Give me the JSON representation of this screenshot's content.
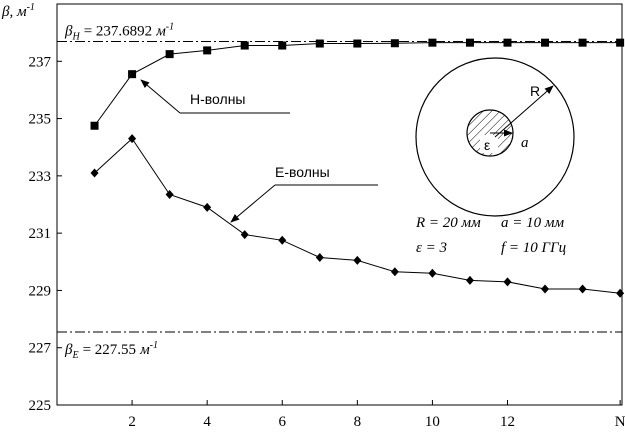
{
  "chart_data": {
    "type": "line",
    "ylabel": {
      "symbol": "β",
      "text": ", м",
      "exponent": "-1"
    },
    "xlim": [
      0,
      15.05
    ],
    "ylim": [
      225,
      239
    ],
    "xticks": [
      2,
      4,
      6,
      8,
      10,
      12,
      {
        "value": 15,
        "label": "N"
      }
    ],
    "yticks": [
      225,
      227,
      229,
      231,
      233,
      235,
      237
    ],
    "x": [
      1,
      2,
      3,
      4,
      5,
      6,
      7,
      8,
      9,
      10,
      11,
      12,
      13,
      14,
      15
    ],
    "series": [
      {
        "name": "H-волны",
        "color": "#000000",
        "marker": "square",
        "values": [
          234.75,
          236.55,
          237.25,
          237.38,
          237.55,
          237.55,
          237.62,
          237.62,
          237.63,
          237.65,
          237.65,
          237.65,
          237.65,
          237.65,
          237.65
        ]
      },
      {
        "name": "E-волны",
        "color": "#000000",
        "marker": "diamond",
        "values": [
          233.1,
          234.3,
          232.35,
          231.9,
          230.95,
          230.75,
          230.15,
          230.05,
          229.65,
          229.6,
          229.35,
          229.3,
          229.05,
          229.05,
          228.9
        ]
      }
    ],
    "reference_lines": [
      {
        "value": 237.6892,
        "symbol": "β",
        "subscript": "H",
        "label": "= 237.6892",
        "unit": "м",
        "exponent": "-1"
      },
      {
        "value": 227.55,
        "symbol": "β",
        "subscript": "E",
        "label": "= 227.55",
        "unit": "м",
        "exponent": "-1"
      }
    ],
    "inset": {
      "radius_label": "R",
      "inner_label": "a",
      "material_label": "ε",
      "params": [
        "R = 20 мм",
        "a = 10 мм",
        "ε = 3",
        "f = 10 ГГц"
      ]
    }
  }
}
